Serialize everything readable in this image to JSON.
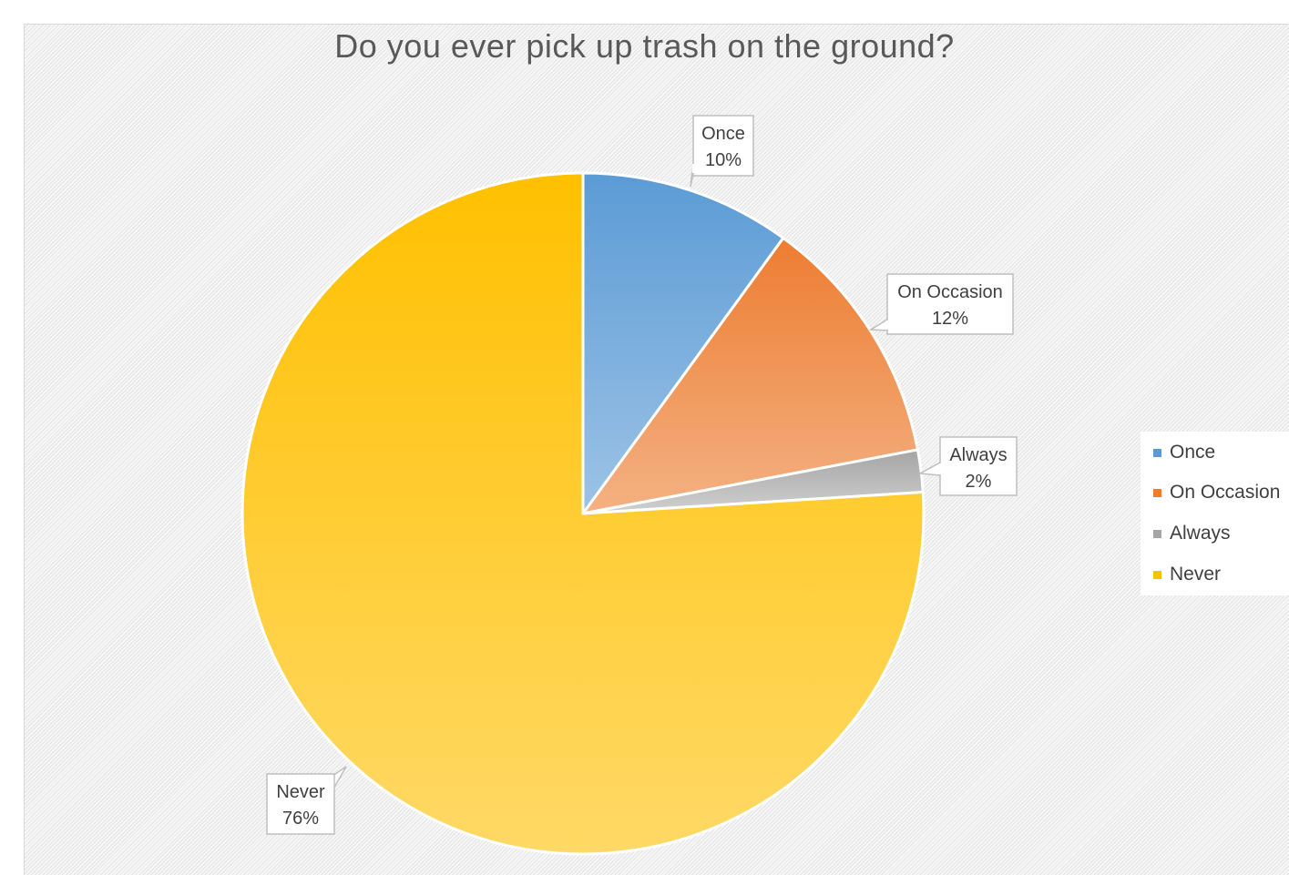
{
  "chart_data": {
    "type": "pie",
    "title": "Do you ever pick up trash on the ground?",
    "categories": [
      "Once",
      "On Occasion",
      "Always",
      "Never"
    ],
    "values": [
      10,
      12,
      2,
      76
    ],
    "data_labels": [
      "10%",
      "12%",
      "2%",
      "76%"
    ],
    "colors": [
      "#5b9bd5",
      "#ed7d31",
      "#a5a5a5",
      "#ffc000"
    ],
    "colors_light": [
      "#9dc3e6",
      "#f4b183",
      "#d0d0d0",
      "#ffd966"
    ],
    "start_angle_deg": 0,
    "direction": "clockwise",
    "legend_position": "right"
  }
}
